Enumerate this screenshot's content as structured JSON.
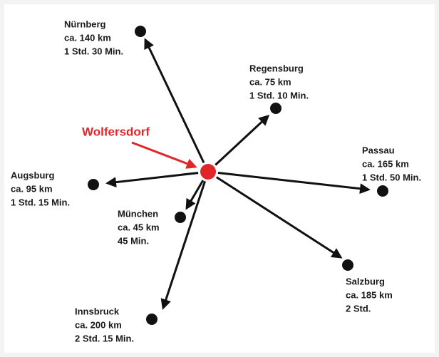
{
  "center": {
    "label": "Wolfersdorf"
  },
  "destinations": [
    {
      "name": "Nürnberg",
      "distance": "ca. 140 km",
      "time": "1 Std. 30 Min."
    },
    {
      "name": "Regensburg",
      "distance": "ca. 75 km",
      "time": "1 Std. 10 Min."
    },
    {
      "name": "Passau",
      "distance": "ca. 165 km",
      "time": "1 Std. 50 Min."
    },
    {
      "name": "Augsburg",
      "distance": "ca. 95 km",
      "time": "1 Std. 15 Min."
    },
    {
      "name": "München",
      "distance": "ca. 45 km",
      "time": "45 Min."
    },
    {
      "name": "Salzburg",
      "distance": "ca. 185 km",
      "time": "2 Std."
    },
    {
      "name": "Innsbruck",
      "distance": "ca. 200 km",
      "time": "2 Std. 15 Min."
    }
  ]
}
